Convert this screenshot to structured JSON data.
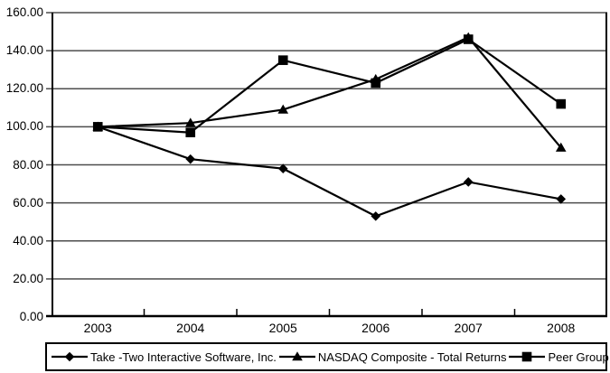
{
  "page": {
    "background": "#ffffff",
    "series_color": "#000000",
    "grid_color": "#4d4d4d"
  },
  "chart_data": {
    "type": "line",
    "title": "",
    "xlabel": "",
    "ylabel": "",
    "categories": [
      "2003",
      "2004",
      "2005",
      "2006",
      "2007",
      "2008"
    ],
    "series": [
      {
        "name": "Take -Two Interactive Software, Inc.",
        "marker": "diamond",
        "values": [
          100,
          83,
          78,
          53,
          71,
          62
        ]
      },
      {
        "name": "NASDAQ Composite - Total Returns",
        "marker": "triangle",
        "values": [
          100,
          102,
          109,
          125,
          147,
          89
        ]
      },
      {
        "name": "Peer Group",
        "marker": "square",
        "values": [
          100,
          97,
          135,
          123,
          146,
          112
        ]
      }
    ],
    "ylim": [
      0,
      160
    ],
    "ytick_step": 20,
    "ytick_labels": [
      "160.00",
      "140.00",
      "120.00",
      "100.00",
      "80.00",
      "60.00",
      "40.00",
      "20.00",
      "0.00"
    ],
    "grid": "horizontal",
    "legend_position": "bottom"
  }
}
